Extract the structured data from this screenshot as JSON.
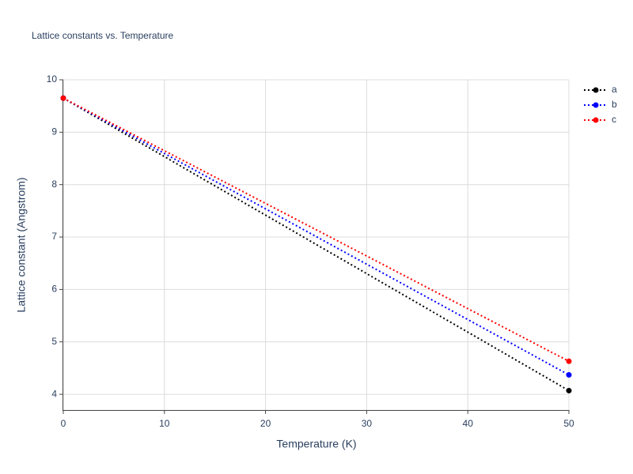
{
  "chart_data": {
    "type": "line",
    "title": "Lattice constants vs. Temperature",
    "x_label": "Temperature (K)",
    "y_label": "Lattice constant (Angstrom)",
    "x": [
      0,
      50
    ],
    "series": [
      {
        "name": "a",
        "color": "#000000",
        "values": [
          9.65,
          4.07
        ]
      },
      {
        "name": "b",
        "color": "#0000ff",
        "values": [
          9.65,
          4.37
        ]
      },
      {
        "name": "c",
        "color": "#ff0000",
        "values": [
          9.65,
          4.63
        ]
      }
    ],
    "xlim": [
      0,
      50
    ],
    "xticks": [
      0,
      10,
      20,
      30,
      40,
      50
    ],
    "ylim": [
      3.7,
      10
    ],
    "yticks": [
      4,
      5,
      6,
      7,
      8,
      9,
      10
    ],
    "grid": true,
    "legend": "top-right"
  }
}
